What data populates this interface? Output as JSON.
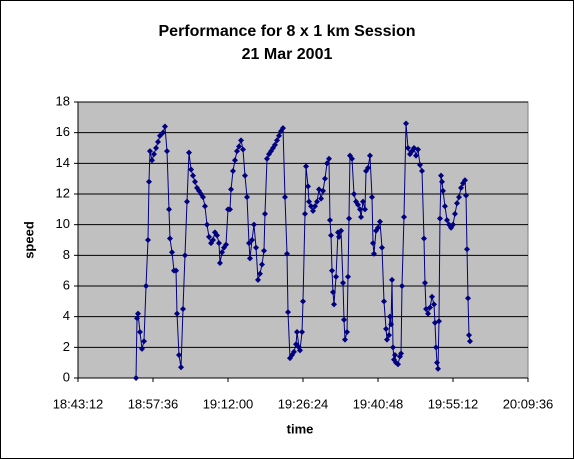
{
  "chart_data": {
    "type": "line",
    "title": "Performance for 8 x 1 km Session",
    "subtitle": "21 Mar 2001",
    "x_label": "time",
    "y_label": "speed",
    "color": "#000080",
    "grid": true,
    "xlim": [
      1123.2,
      1209.6
    ],
    "xticks": [
      {
        "value": 1123.2,
        "label": "18:43:12"
      },
      {
        "value": 1137.6,
        "label": "18:57:36"
      },
      {
        "value": 1152,
        "label": "19:12:00"
      },
      {
        "value": 1166.4,
        "label": "19:26:24"
      },
      {
        "value": 1180.8,
        "label": "19:40:48"
      },
      {
        "value": 1195.2,
        "label": "19:55:12"
      },
      {
        "value": 1209.6,
        "label": "20:09:36"
      }
    ],
    "ylim": [
      0,
      18
    ],
    "yticks": [
      0,
      2,
      4,
      6,
      8,
      10,
      12,
      14,
      16,
      18
    ],
    "x": [
      1134.34,
      1134.53,
      1134.72,
      1135.1,
      1135.49,
      1135.87,
      1136.26,
      1136.64,
      1136.83,
      1137.02,
      1137.41,
      1137.79,
      1138.18,
      1138.56,
      1138.94,
      1139.52,
      1139.9,
      1140.29,
      1140.67,
      1140.86,
      1141.25,
      1141.63,
      1142.02,
      1142.21,
      1142.59,
      1142.98,
      1143.36,
      1143.74,
      1144.13,
      1144.51,
      1144.9,
      1145.28,
      1145.66,
      1146.05,
      1146.43,
      1146.82,
      1147.2,
      1147.58,
      1147.97,
      1148.35,
      1148.74,
      1149.12,
      1149.5,
      1149.89,
      1150.27,
      1150.46,
      1150.85,
      1151.23,
      1151.62,
      1152.0,
      1152.38,
      1152.58,
      1152.96,
      1153.34,
      1153.73,
      1154.11,
      1154.5,
      1154.88,
      1155.26,
      1155.65,
      1156.03,
      1156.22,
      1156.61,
      1156.99,
      1157.38,
      1157.76,
      1158.14,
      1158.53,
      1158.91,
      1159.1,
      1159.49,
      1159.87,
      1160.26,
      1160.64,
      1161.02,
      1161.41,
      1161.79,
      1162.18,
      1162.56,
      1162.94,
      1163.33,
      1163.52,
      1163.9,
      1164.29,
      1164.67,
      1165.06,
      1165.25,
      1165.63,
      1165.82,
      1166.21,
      1166.4,
      1166.78,
      1166.98,
      1167.36,
      1167.55,
      1167.94,
      1168.32,
      1168.7,
      1169.09,
      1169.47,
      1169.86,
      1170.24,
      1170.62,
      1171.01,
      1171.39,
      1171.58,
      1171.78,
      1171.97,
      1172.16,
      1172.35,
      1172.74,
      1173.12,
      1173.31,
      1173.7,
      1174.08,
      1174.27,
      1174.46,
      1174.85,
      1175.04,
      1175.23,
      1175.42,
      1175.81,
      1176.19,
      1176.58,
      1176.96,
      1177.34,
      1177.54,
      1177.92,
      1178.3,
      1178.5,
      1178.88,
      1179.26,
      1179.65,
      1179.84,
      1180.03,
      1180.42,
      1180.8,
      1181.18,
      1181.57,
      1181.95,
      1182.34,
      1182.53,
      1182.91,
      1183.1,
      1183.3,
      1183.49,
      1183.68,
      1183.87,
      1184.06,
      1184.26,
      1184.64,
      1185.02,
      1185.22,
      1185.41,
      1185.79,
      1186.18,
      1186.56,
      1186.94,
      1187.33,
      1187.71,
      1188.1,
      1188.48,
      1188.86,
      1189.25,
      1189.63,
      1189.82,
      1190.02,
      1190.4,
      1190.78,
      1191.17,
      1191.55,
      1191.74,
      1191.94,
      1192.13,
      1192.32,
      1192.51,
      1192.7,
      1192.9,
      1193.09,
      1193.28,
      1193.66,
      1194.05,
      1194.43,
      1194.82,
      1195.2,
      1195.58,
      1195.97,
      1196.35,
      1196.74,
      1197.12,
      1197.5,
      1197.7,
      1197.89,
      1198.08,
      1198.27,
      1198.46
    ],
    "values": [
      0,
      3.9,
      4.2,
      3.0,
      1.9,
      2.4,
      6.0,
      9.0,
      12.8,
      14.8,
      14.2,
      14.6,
      15.0,
      15.4,
      15.8,
      16.0,
      16.4,
      14.8,
      11.0,
      9.1,
      8.2,
      7.0,
      7.0,
      4.2,
      1.5,
      0.7,
      4.5,
      8.0,
      11.5,
      14.7,
      13.6,
      13.2,
      12.8,
      12.4,
      12.2,
      12.0,
      11.8,
      11.2,
      10.0,
      9.2,
      8.8,
      9.0,
      9.5,
      9.3,
      8.8,
      7.5,
      8.2,
      8.5,
      8.7,
      11.0,
      11.0,
      12.3,
      13.5,
      14.2,
      14.8,
      15.1,
      15.5,
      14.9,
      13.2,
      11.8,
      8.8,
      7.8,
      9.0,
      10.0,
      8.5,
      6.4,
      6.8,
      7.4,
      8.3,
      10.7,
      14.3,
      14.6,
      14.8,
      15.0,
      15.2,
      15.5,
      15.8,
      16.1,
      16.3,
      11.8,
      8.1,
      4.3,
      1.3,
      1.5,
      1.7,
      2.2,
      3.0,
      2.0,
      1.8,
      3.0,
      5.0,
      10.7,
      13.8,
      12.5,
      11.5,
      11.2,
      10.9,
      11.2,
      11.5,
      12.3,
      11.7,
      12.2,
      13.0,
      14.0,
      14.3,
      10.3,
      9.3,
      7.0,
      5.6,
      4.8,
      6.6,
      9.5,
      9.2,
      9.6,
      6.2,
      3.8,
      2.5,
      3.0,
      6.6,
      10.4,
      14.5,
      14.3,
      12.0,
      11.5,
      11.3,
      11.0,
      10.5,
      11.5,
      11.0,
      13.5,
      13.7,
      14.5,
      11.8,
      8.8,
      8.1,
      9.6,
      9.8,
      10.2,
      8.5,
      5.0,
      3.2,
      2.5,
      2.8,
      4.0,
      3.5,
      6.4,
      2.0,
      1.2,
      1.5,
      1.0,
      0.9,
      1.4,
      1.6,
      6.0,
      10.5,
      16.6,
      15.0,
      14.6,
      14.8,
      15.0,
      14.5,
      14.9,
      13.9,
      13.5,
      9.1,
      6.2,
      4.5,
      4.2,
      4.6,
      5.3,
      4.8,
      3.6,
      2.0,
      1.0,
      0.6,
      3.7,
      10.4,
      13.2,
      12.8,
      12.2,
      11.2,
      10.3,
      10.0,
      9.8,
      10.0,
      10.7,
      11.4,
      11.8,
      12.4,
      12.7,
      12.9,
      11.9,
      8.4,
      5.2,
      2.8,
      2.4
    ]
  }
}
